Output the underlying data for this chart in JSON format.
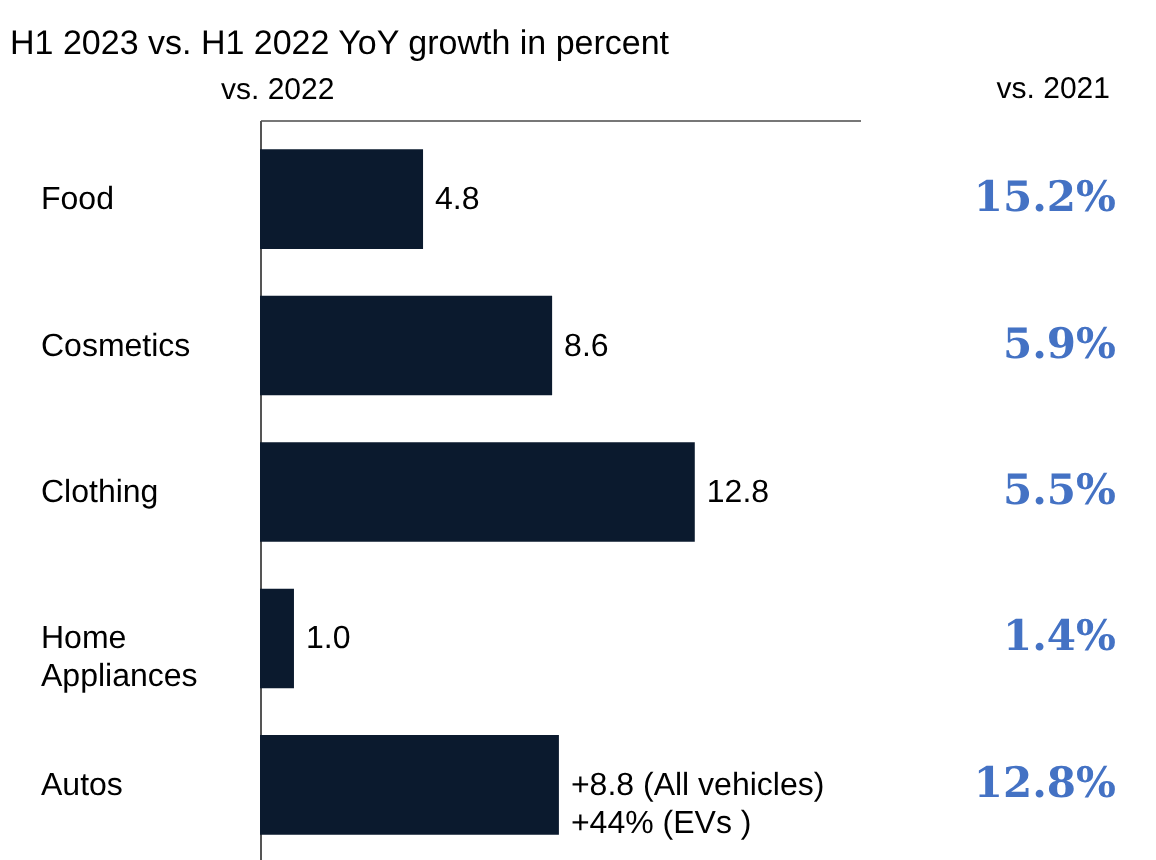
{
  "chart_data": {
    "type": "bar",
    "orientation": "horizontal",
    "title": "H1 2023 vs. H1 2022 YoY growth in percent",
    "xlabel": "vs. 2022",
    "categories": [
      "Food",
      "Cosmetics",
      "Clothing",
      "Home Appliances",
      "Autos"
    ],
    "values": [
      4.8,
      8.6,
      12.8,
      1.0,
      8.8
    ],
    "value_labels": [
      "4.8",
      "8.6",
      "12.8",
      "1.0",
      "+8.8 (All vehicles)\n+44% (EVs )"
    ],
    "color": "#0b1a2e",
    "annotations": [
      "vs. 2021",
      "15.2%",
      "5.9%",
      "5.5%",
      "1.4%",
      "12.8%"
    ],
    "grid": false
  }
}
